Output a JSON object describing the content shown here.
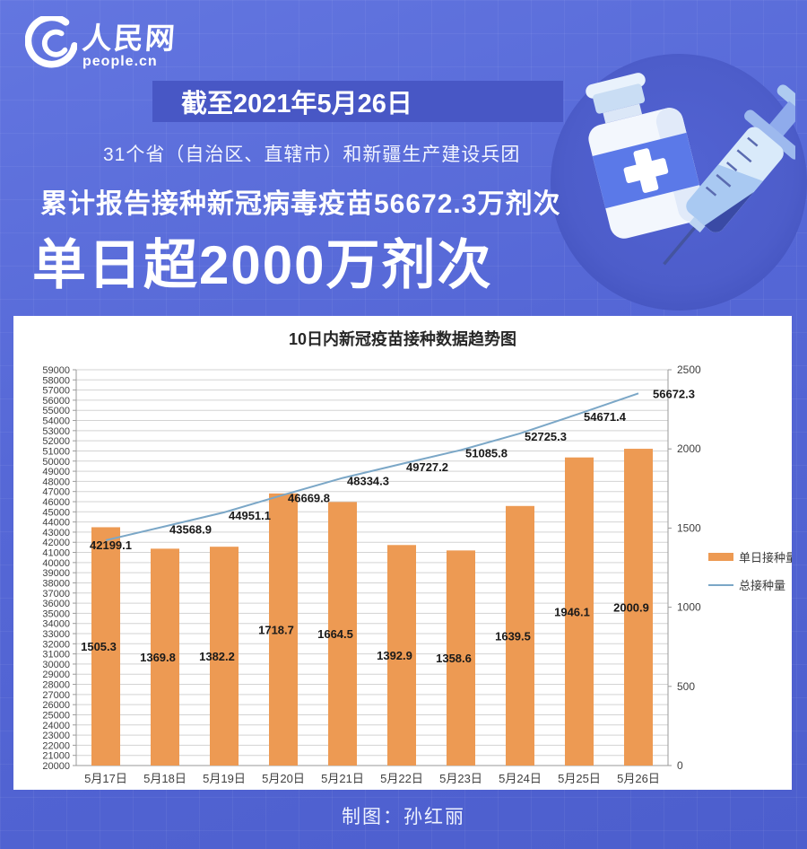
{
  "brand": {
    "logo_cn": "人民网",
    "logo_en": "people.cn"
  },
  "header": {
    "date_banner": "截至2021年5月26日",
    "subtitle": "31个省（自治区、直辖市）和新疆生产建设兵团",
    "headline": "累计报告接种新冠病毒疫苗56672.3万剂次",
    "highlight": "单日超2000万剂次"
  },
  "footer": {
    "credit": "制图：孙红丽"
  },
  "colors": {
    "background_blue": "#5567d6",
    "banner_blue": "#4857c5",
    "bar_orange": "#ED9A53",
    "line_blue": "#7BA7C7",
    "panel_white": "#ffffff"
  },
  "chart_data": {
    "type": "bar",
    "title": "10日内新冠疫苗接种数据趋势图",
    "categories": [
      "5月17日",
      "5月18日",
      "5月19日",
      "5月20日",
      "5月21日",
      "5月22日",
      "5月23日",
      "5月24日",
      "5月25日",
      "5月26日"
    ],
    "series": [
      {
        "name": "单日接种量",
        "type": "bar",
        "axis": "right",
        "color": "#ED9A53",
        "values": [
          1505.3,
          1369.8,
          1382.2,
          1718.7,
          1664.5,
          1392.9,
          1358.6,
          1639.5,
          1946.1,
          2000.9
        ]
      },
      {
        "name": "总接种量",
        "type": "line",
        "axis": "left",
        "color": "#7BA7C7",
        "values": [
          42199.1,
          43568.9,
          44951.1,
          46669.8,
          48334.3,
          49727.2,
          51085.8,
          52725.3,
          54671.4,
          56672.3
        ]
      }
    ],
    "left_axis": {
      "min": 20000,
      "max": 59000,
      "step": 1000
    },
    "right_axis": {
      "min": 0,
      "max": 2500,
      "step": 500
    },
    "grid": true,
    "legend_position": "right"
  }
}
